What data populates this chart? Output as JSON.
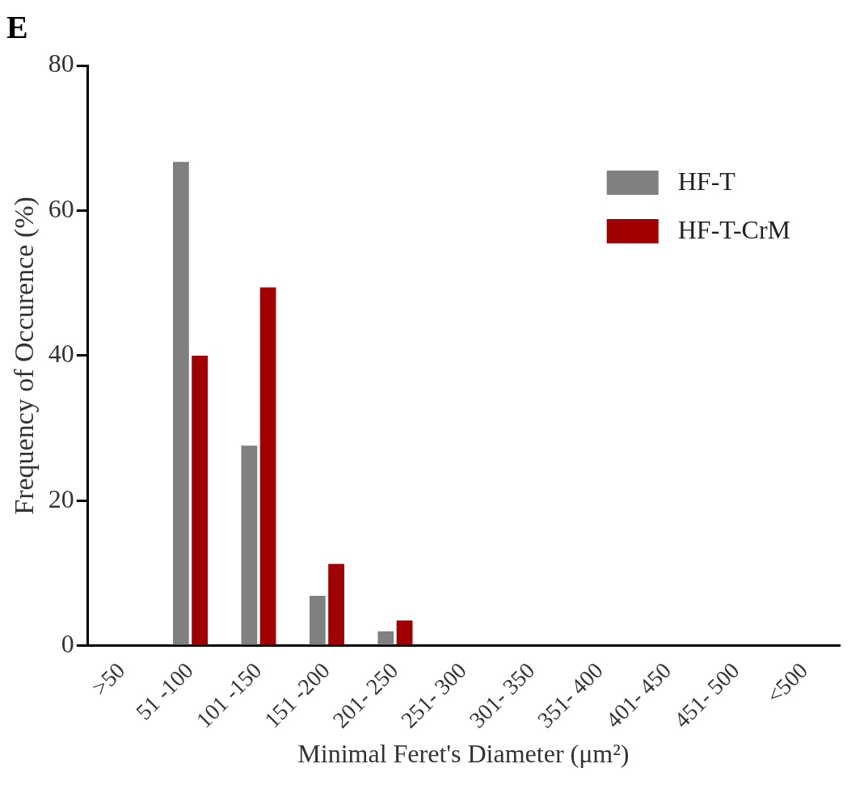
{
  "chart_data": {
    "type": "bar",
    "title": "E",
    "xlabel": "Minimal Feret's Diameter (μm²)",
    "ylabel": "Frequency of Occurence (%)",
    "categories": [
      ">50",
      "51 -100",
      "101 -150",
      "151 -200",
      "201- 250",
      "251- 300",
      "301- 350",
      "351- 400",
      "401- 450",
      "451- 500",
      "<500"
    ],
    "series": [
      {
        "name": "HF-T",
        "color": "#808080",
        "values": [
          0,
          66.7,
          27.6,
          6.9,
          2.0,
          0,
          0,
          0,
          0,
          0,
          0
        ]
      },
      {
        "name": "HF-T-CrM",
        "color": "#a00000",
        "values": [
          0,
          40,
          49.4,
          11.3,
          3.5,
          0,
          0,
          0,
          0,
          0,
          0
        ]
      }
    ],
    "ylim": [
      0,
      80
    ],
    "yticks": [
      0,
      20,
      40,
      60,
      80
    ],
    "grid": false,
    "legend": "top right"
  }
}
